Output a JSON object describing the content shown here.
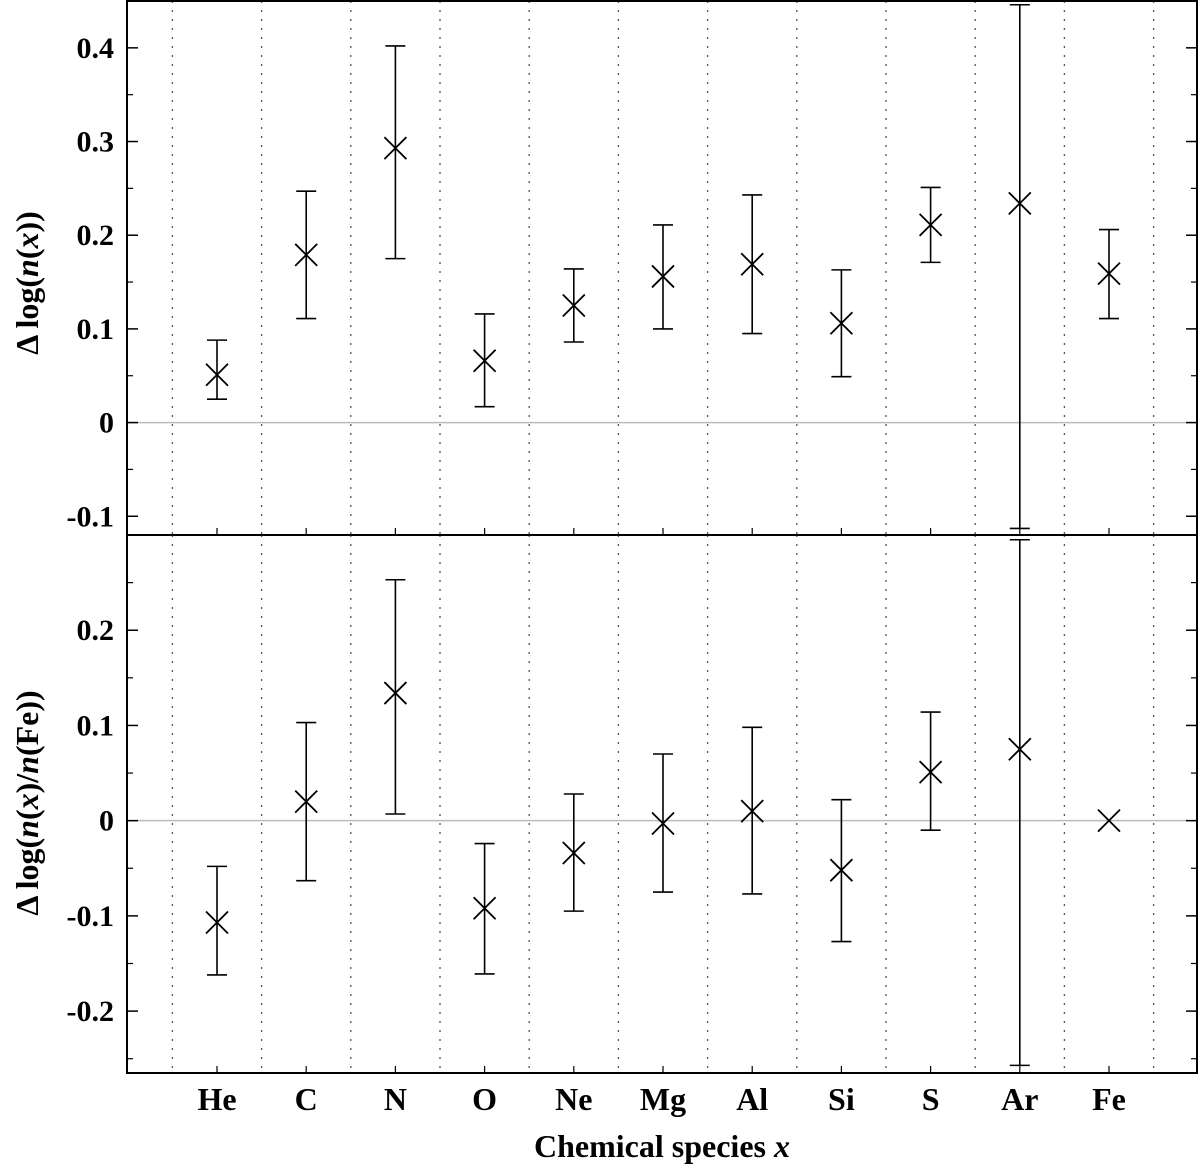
{
  "chart_data": [
    {
      "type": "scatter",
      "panel": "top",
      "ylabel_parts": [
        "Δ log(",
        "n",
        "(",
        "x",
        "))"
      ],
      "xlabel": "",
      "categories": [
        "He",
        "C",
        "N",
        "O",
        "Ne",
        "Mg",
        "Al",
        "Si",
        "S",
        "Ar",
        "Fe"
      ],
      "values": [
        0.051,
        0.179,
        0.293,
        0.066,
        0.125,
        0.156,
        0.169,
        0.106,
        0.211,
        0.234,
        0.159
      ],
      "err_low": [
        0.025,
        0.111,
        0.175,
        0.017,
        0.086,
        0.1,
        0.095,
        0.049,
        0.171,
        -0.113,
        0.111
      ],
      "err_high": [
        0.088,
        0.247,
        0.402,
        0.116,
        0.164,
        0.211,
        0.243,
        0.163,
        0.251,
        0.446,
        0.206
      ],
      "ylim": [
        -0.12,
        0.45
      ],
      "yticks": [
        -0.1,
        0,
        0.1,
        0.2,
        0.3,
        0.4
      ],
      "ytick_labels": [
        "-0.1",
        "0",
        "0.1",
        "0.2",
        "0.3",
        "0.4"
      ],
      "zero_line": true,
      "grid": "vertical dotted",
      "marker": "x"
    },
    {
      "type": "scatter",
      "panel": "bottom",
      "ylabel_parts": [
        "Δ log(",
        "n",
        "(",
        "x",
        ")/",
        "n",
        "(Fe))"
      ],
      "xlabel_parts": [
        "Chemical species ",
        "x"
      ],
      "categories": [
        "He",
        "C",
        "N",
        "O",
        "Ne",
        "Mg",
        "Al",
        "Si",
        "S",
        "Ar",
        "Fe"
      ],
      "values": [
        -0.107,
        0.02,
        0.134,
        -0.092,
        -0.034,
        -0.003,
        0.01,
        -0.052,
        0.051,
        0.075,
        0.0
      ],
      "err_low": [
        -0.162,
        -0.063,
        0.007,
        -0.161,
        -0.095,
        -0.075,
        -0.077,
        -0.127,
        -0.01,
        -0.257,
        null
      ],
      "err_high": [
        -0.048,
        0.103,
        0.253,
        -0.024,
        0.028,
        0.07,
        0.098,
        0.022,
        0.114,
        0.295,
        null
      ],
      "ylim": [
        -0.265,
        0.3
      ],
      "yticks": [
        -0.2,
        -0.1,
        0,
        0.1,
        0.2
      ],
      "ytick_labels": [
        "-0.2",
        "-0.1",
        "0",
        "0.1",
        "0.2"
      ],
      "zero_line": true,
      "grid": "vertical dotted",
      "marker": "x"
    }
  ],
  "colors": {
    "ink": "#000000",
    "zero_line": "#bbbbbb",
    "grid": "#555555",
    "background": "#ffffff"
  }
}
